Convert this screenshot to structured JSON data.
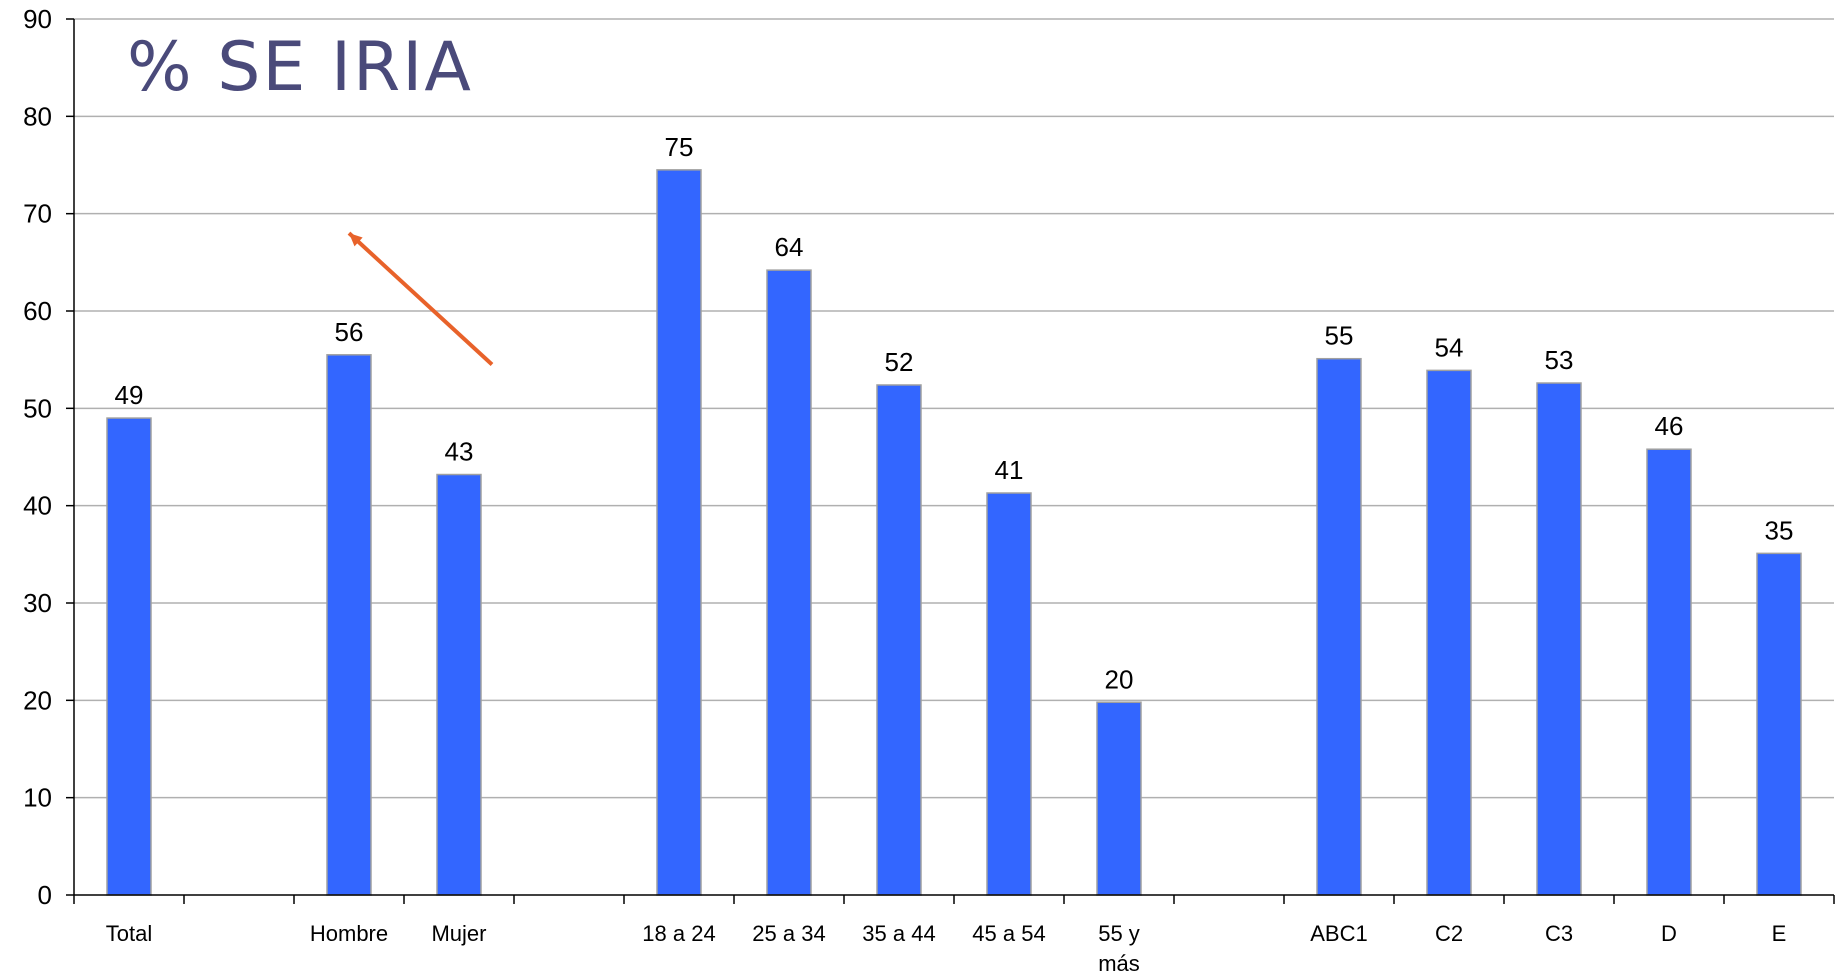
{
  "chart_data": {
    "type": "bar",
    "title": "% SE IRIA",
    "xlabel": "",
    "ylabel": "",
    "ylim": [
      0,
      90
    ],
    "yticks": [
      0,
      10,
      20,
      30,
      40,
      50,
      60,
      70,
      80,
      90
    ],
    "grid": true,
    "legend": "none",
    "categories": [
      "Total",
      "",
      "Hombre",
      "Mujer",
      "",
      "18 a 24",
      "25 a 34",
      "35 a 44",
      "45 a 54",
      "55 y\nmás",
      "",
      "ABC1",
      "C2",
      "C3",
      "D",
      "E"
    ],
    "values": [
      49,
      null,
      55.5,
      43.2,
      null,
      74.5,
      64.2,
      52.4,
      41.3,
      19.8,
      null,
      55.1,
      53.9,
      52.6,
      45.8,
      35.1
    ],
    "data_labels": [
      "49",
      "",
      "56",
      "43",
      "",
      "75",
      "64",
      "52",
      "41",
      "20",
      "",
      "55",
      "54",
      "53",
      "46",
      "35"
    ],
    "bar_color": "#3366ff",
    "bar_border_color": "#a0a0a0",
    "grid_color": "#b0b0b0",
    "title_color": "#4a4a7a",
    "annotation_arrow": {
      "color": "#e8622a",
      "from_value": 54.5,
      "to_value": 68,
      "from_category_index": 3.3,
      "to_category_index": 2
    }
  }
}
